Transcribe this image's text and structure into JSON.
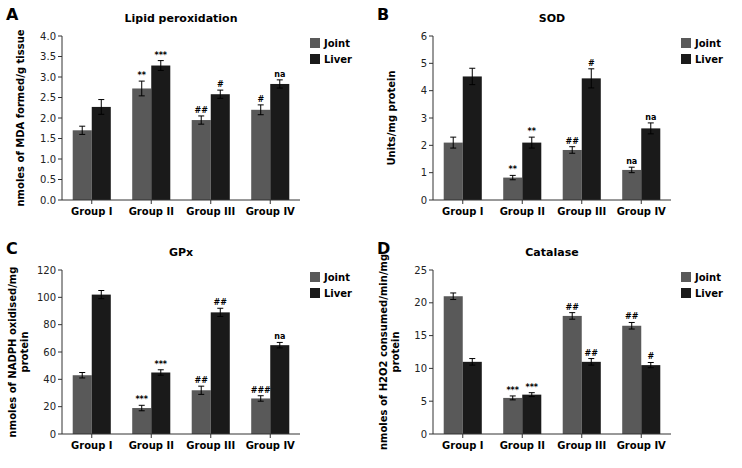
{
  "chart_data": [
    {
      "type": "bar",
      "panel_label": "A",
      "title": "Lipid peroxidation",
      "ylabel": "nmoles of MDA formed/g tissue",
      "categories": [
        "Group I",
        "Group II",
        "Group III",
        "Group IV"
      ],
      "series": [
        {
          "name": "Joint",
          "color": "#595959",
          "values": [
            1.7,
            2.72,
            1.95,
            2.2
          ],
          "errors": [
            0.1,
            0.18,
            0.1,
            0.12
          ],
          "annotations": [
            null,
            "**",
            "##",
            "#"
          ]
        },
        {
          "name": "Liver",
          "color": "#1a1a1a",
          "values": [
            2.27,
            3.28,
            2.58,
            2.83
          ],
          "errors": [
            0.18,
            0.12,
            0.1,
            0.1
          ],
          "annotations": [
            null,
            "***",
            "#",
            "na"
          ]
        }
      ],
      "ylim": [
        0,
        4
      ],
      "yticks": [
        {
          "value": 0,
          "label": "0.0"
        },
        0.5,
        {
          "value": 1,
          "label": "1.0"
        },
        1.5,
        {
          "value": 2,
          "label": "2.0"
        },
        2.5,
        {
          "value": 3,
          "label": "3.0"
        },
        3.5,
        {
          "value": 4,
          "label": "4.0"
        }
      ],
      "grid": false,
      "legend": "upper right"
    },
    {
      "type": "bar",
      "panel_label": "B",
      "title": "SOD",
      "ylabel": "Units/mg protein",
      "categories": [
        "Group I",
        "Group II",
        "Group III",
        "Group IV"
      ],
      "series": [
        {
          "name": "Joint",
          "color": "#595959",
          "values": [
            2.1,
            0.82,
            1.83,
            1.1
          ],
          "errors": [
            0.2,
            0.08,
            0.12,
            0.1
          ],
          "annotations": [
            null,
            "**",
            "##",
            "na"
          ]
        },
        {
          "name": "Liver",
          "color": "#1a1a1a",
          "values": [
            4.52,
            2.1,
            4.45,
            2.62
          ],
          "errors": [
            0.3,
            0.2,
            0.35,
            0.2
          ],
          "annotations": [
            null,
            "**",
            "#",
            "na"
          ]
        }
      ],
      "ylim": [
        0,
        6
      ],
      "yticks": [
        0,
        1,
        2,
        3,
        4,
        5,
        6
      ],
      "grid": false,
      "legend": "upper right"
    },
    {
      "type": "bar",
      "panel_label": "C",
      "title": "GPx",
      "ylabel": "nmoles of NADPH oxidised/mg\nprotein",
      "categories": [
        "Group I",
        "Group II",
        "Group III",
        "Group IV"
      ],
      "series": [
        {
          "name": "Joint",
          "color": "#595959",
          "values": [
            43,
            19,
            32,
            26
          ],
          "errors": [
            2,
            2,
            3,
            2
          ],
          "annotations": [
            null,
            "***",
            "##",
            "###"
          ]
        },
        {
          "name": "Liver",
          "color": "#1a1a1a",
          "values": [
            102,
            45,
            89,
            65
          ],
          "errors": [
            3,
            2,
            3,
            2
          ],
          "annotations": [
            null,
            "***",
            "##",
            "na"
          ]
        }
      ],
      "ylim": [
        0,
        120
      ],
      "yticks": [
        0,
        20,
        40,
        60,
        80,
        100,
        120
      ],
      "grid": false,
      "legend": "upper right"
    },
    {
      "type": "bar",
      "panel_label": "D",
      "title": "Catalase",
      "ylabel": "nmoles of H2O2 consumed/min/mg\nprotein",
      "categories": [
        "Group I",
        "Group II",
        "Group III",
        "Group IV"
      ],
      "series": [
        {
          "name": "Joint",
          "color": "#595959",
          "values": [
            21.0,
            5.5,
            18.0,
            16.5
          ],
          "errors": [
            0.5,
            0.3,
            0.5,
            0.5
          ],
          "annotations": [
            null,
            "***",
            "##",
            "##"
          ]
        },
        {
          "name": "Liver",
          "color": "#1a1a1a",
          "values": [
            11.0,
            6.0,
            11.0,
            10.5
          ],
          "errors": [
            0.5,
            0.3,
            0.5,
            0.4
          ],
          "annotations": [
            null,
            "***",
            "##",
            "#"
          ]
        }
      ],
      "ylim": [
        0,
        25
      ],
      "yticks": [
        0,
        5,
        10,
        15,
        20,
        25
      ],
      "grid": false,
      "legend": "upper right"
    }
  ]
}
